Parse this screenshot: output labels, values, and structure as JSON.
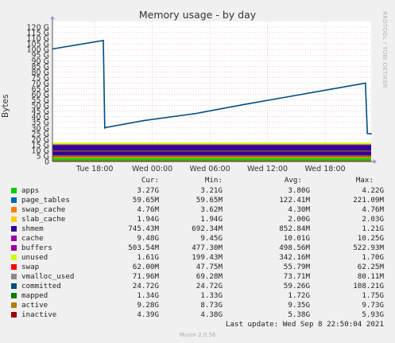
{
  "graph": {
    "title": "Memory usage - by day",
    "ylabel": "Bytes",
    "watermark": "RRDTOOL / TOBI OETIKER",
    "last_update": "Last update: Wed Sep  8 22:50:04 2021",
    "munin_version": "Munin 2.0.56",
    "columns": [
      "Cur:",
      "Min:",
      "Avg:",
      "Max:"
    ]
  },
  "chart_data": {
    "type": "area",
    "title": "Memory usage - by day",
    "xlabel": "",
    "ylabel": "Bytes",
    "ylim": [
      0,
      125
    ],
    "y_unit": "G",
    "y_ticks": [
      0,
      5,
      10,
      15,
      20,
      25,
      30,
      35,
      40,
      45,
      50,
      55,
      60,
      65,
      70,
      75,
      80,
      85,
      90,
      95,
      100,
      105,
      110,
      115,
      120
    ],
    "y_tick_labels": [
      "0",
      "5 G",
      "10 G",
      "15 G",
      "20 G",
      "25 G",
      "30 G",
      "35 G",
      "40 G",
      "45 G",
      "50 G",
      "55 G",
      "60 G",
      "65 G",
      "70 G",
      "75 G",
      "80 G",
      "85 G",
      "90 G",
      "95 G",
      "100 G",
      "105 G",
      "110 G",
      "115 G",
      "120 G"
    ],
    "x_range_hours": [
      0,
      33.2
    ],
    "x_ticks": [
      {
        "label": "Tue 18:00",
        "h": 4.4
      },
      {
        "label": "Wed 00:00",
        "h": 10.4
      },
      {
        "label": "Wed 06:00",
        "h": 16.4
      },
      {
        "label": "Wed 12:00",
        "h": 22.4
      },
      {
        "label": "Wed 18:00",
        "h": 28.4
      }
    ],
    "grid": true,
    "legend_position": "bottom",
    "stack": [
      {
        "name": "apps",
        "color": "#00cc00",
        "value": 3.27
      },
      {
        "name": "page_tables",
        "color": "#0066b3",
        "value": 0.06
      },
      {
        "name": "swap_cache",
        "color": "#ff8000",
        "value": 0.005
      },
      {
        "name": "slab_cache",
        "color": "#ffcc00",
        "value": 1.94
      },
      {
        "name": "cache",
        "color": "#330099",
        "value": 9.48
      },
      {
        "name": "buffers",
        "color": "#990099",
        "value": 0.5
      },
      {
        "name": "unused",
        "color": "#ccff00",
        "value": 1.61
      }
    ],
    "lines": [
      {
        "name": "shmem",
        "color": "#007f00",
        "value": 0.75
      },
      {
        "name": "swap",
        "color": "#ff0000",
        "value": 0.06
      },
      {
        "name": "vmalloc_used",
        "color": "#888888",
        "value": 0.07
      },
      {
        "name": "mapped",
        "color": "#cc9900",
        "value": 1.34
      },
      {
        "name": "active",
        "color": "#b38000",
        "value": 9.28
      },
      {
        "name": "inactive",
        "color": "#a00000",
        "value": 4.39
      }
    ],
    "committed": {
      "name": "committed",
      "color": "#004d80",
      "points": [
        [
          0,
          100.5
        ],
        [
          5.3,
          108.0
        ],
        [
          5.45,
          30.0
        ],
        [
          5.6,
          30.5
        ],
        [
          9.5,
          36.5
        ],
        [
          15,
          43
        ],
        [
          20,
          51
        ],
        [
          26,
          60
        ],
        [
          32.6,
          70.0
        ],
        [
          32.8,
          25.0
        ],
        [
          33.2,
          24.7
        ]
      ]
    }
  },
  "legend": [
    {
      "name": "apps",
      "color": "#00cc00",
      "cur": "3.27G",
      "min": "3.21G",
      "avg": "3.80G",
      "max": "4.22G"
    },
    {
      "name": "page_tables",
      "color": "#0066b3",
      "cur": "59.65M",
      "min": "59.65M",
      "avg": "122.41M",
      "max": "221.09M"
    },
    {
      "name": "swap_cache",
      "color": "#ff8000",
      "cur": "4.76M",
      "min": "3.62M",
      "avg": "4.30M",
      "max": "4.76M"
    },
    {
      "name": "slab_cache",
      "color": "#ffcc00",
      "cur": "1.94G",
      "min": "1.94G",
      "avg": "2.00G",
      "max": "2.03G"
    },
    {
      "name": "shmem",
      "color": "#330099",
      "cur": "745.43M",
      "min": "692.34M",
      "avg": "852.84M",
      "max": "1.21G"
    },
    {
      "name": "cache",
      "color": "#990099",
      "cur": "9.48G",
      "min": "9.45G",
      "avg": "10.01G",
      "max": "10.25G"
    },
    {
      "name": "buffers",
      "color": "#990099",
      "cur": "503.54M",
      "min": "477.30M",
      "avg": "498.56M",
      "max": "522.93M"
    },
    {
      "name": "unused",
      "color": "#ccff00",
      "cur": "1.61G",
      "min": "199.43M",
      "avg": "342.16M",
      "max": "1.70G"
    },
    {
      "name": "swap",
      "color": "#ff0000",
      "cur": "62.00M",
      "min": "47.75M",
      "avg": "55.79M",
      "max": "62.25M"
    },
    {
      "name": "vmalloc_used",
      "color": "#888888",
      "cur": "71.96M",
      "min": "69.28M",
      "avg": "73.71M",
      "max": "80.11M"
    },
    {
      "name": "committed",
      "color": "#004d80",
      "cur": "24.72G",
      "min": "24.72G",
      "avg": "59.26G",
      "max": "108.21G"
    },
    {
      "name": "mapped",
      "color": "#007f00",
      "cur": "1.34G",
      "min": "1.33G",
      "avg": "1.72G",
      "max": "1.75G"
    },
    {
      "name": "active",
      "color": "#b38000",
      "cur": "9.28G",
      "min": "8.73G",
      "avg": "9.35G",
      "max": "9.73G"
    },
    {
      "name": "inactive",
      "color": "#a00000",
      "cur": "4.39G",
      "min": "4.38G",
      "avg": "5.38G",
      "max": "5.93G"
    }
  ]
}
